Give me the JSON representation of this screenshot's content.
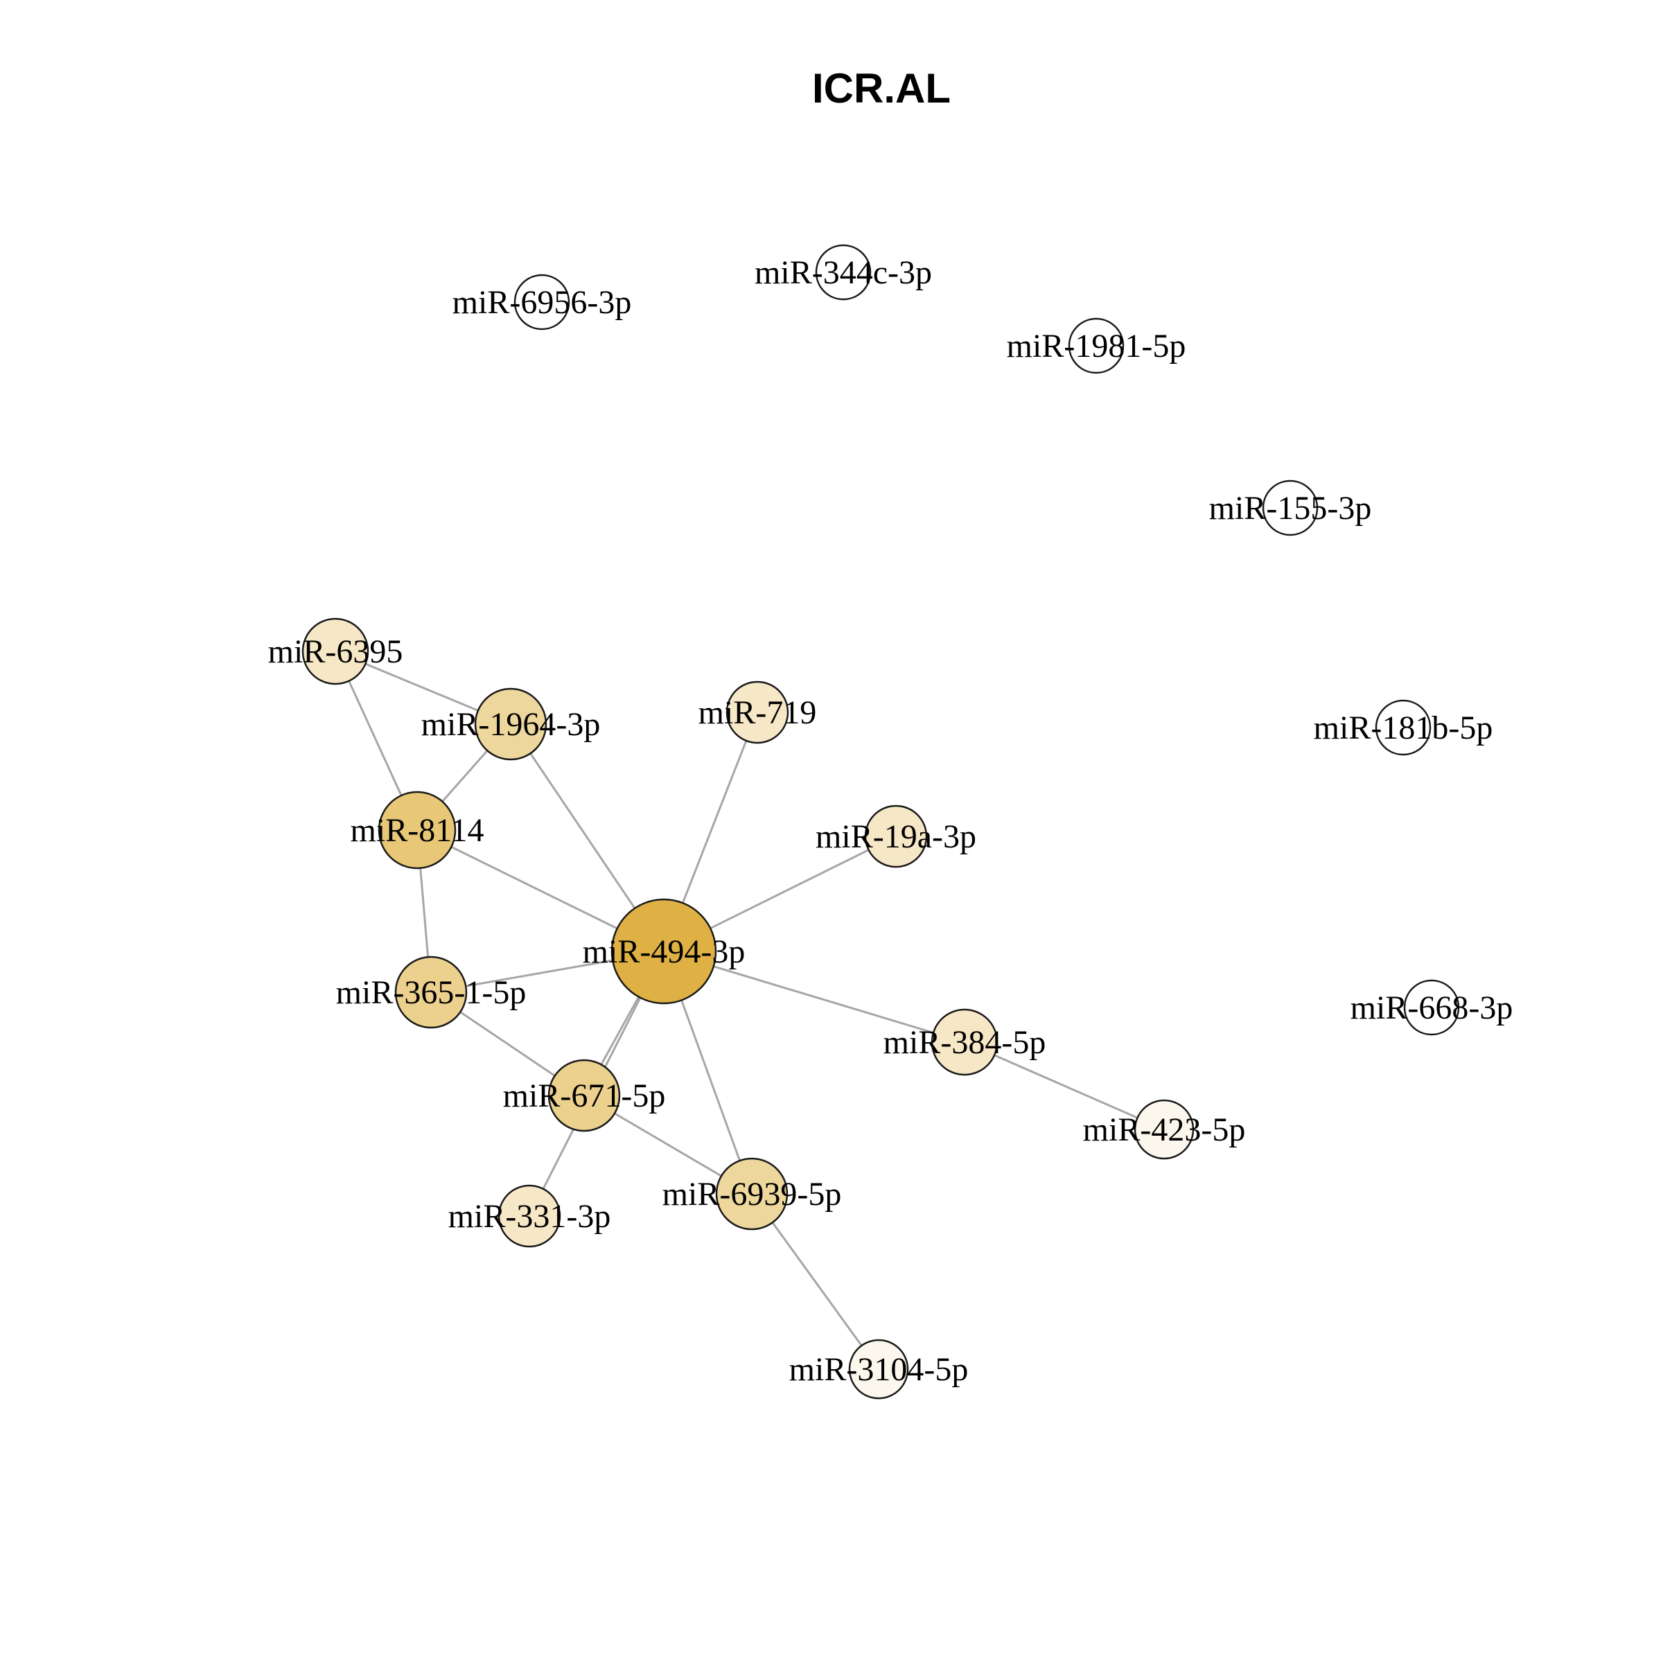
{
  "title": "ICR.AL",
  "network": {
    "nodes": [
      {
        "id": "miR-6956-3p",
        "label": "miR-6956-3p",
        "fill": "#ffffff"
      },
      {
        "id": "miR-344c-3p",
        "label": "miR-344c-3p",
        "fill": "#ffffff"
      },
      {
        "id": "miR-1981-5p",
        "label": "miR-1981-5p",
        "fill": "#ffffff"
      },
      {
        "id": "miR-155-3p",
        "label": "miR-155-3p",
        "fill": "#ffffff"
      },
      {
        "id": "miR-181b-5p",
        "label": "miR-181b-5p",
        "fill": "#ffffff"
      },
      {
        "id": "miR-668-3p",
        "label": "miR-668-3p",
        "fill": "#ffffff"
      },
      {
        "id": "miR-6395",
        "label": "miR-6395",
        "fill": "#f6e7c6"
      },
      {
        "id": "miR-1964-3p",
        "label": "miR-1964-3p",
        "fill": "#eed79d"
      },
      {
        "id": "miR-719",
        "label": "miR-719",
        "fill": "#f6e7c6"
      },
      {
        "id": "miR-8114",
        "label": "miR-8114",
        "fill": "#e8c777"
      },
      {
        "id": "miR-19a-3p",
        "label": "miR-19a-3p",
        "fill": "#f6e7c6"
      },
      {
        "id": "miR-494-3p",
        "label": "miR-494-3p",
        "fill": "#dfb144"
      },
      {
        "id": "miR-365-1-5p",
        "label": "miR-365-1-5p",
        "fill": "#ecd08e"
      },
      {
        "id": "miR-671-5p",
        "label": "miR-671-5p",
        "fill": "#ecd08e"
      },
      {
        "id": "miR-384-5p",
        "label": "miR-384-5p",
        "fill": "#f6e7c6"
      },
      {
        "id": "miR-423-5p",
        "label": "miR-423-5p",
        "fill": "#fbf7ec"
      },
      {
        "id": "miR-6939-5p",
        "label": "miR-6939-5p",
        "fill": "#eed79d"
      },
      {
        "id": "miR-331-3p",
        "label": "miR-331-3p",
        "fill": "#f6e7c6"
      },
      {
        "id": "miR-3104-5p",
        "label": "miR-3104-5p",
        "fill": "#fbf7ec"
      }
    ],
    "edges": [
      [
        "miR-6395",
        "miR-1964-3p"
      ],
      [
        "miR-6395",
        "miR-8114"
      ],
      [
        "miR-1964-3p",
        "miR-8114"
      ],
      [
        "miR-1964-3p",
        "miR-494-3p"
      ],
      [
        "miR-719",
        "miR-494-3p"
      ],
      [
        "miR-8114",
        "miR-494-3p"
      ],
      [
        "miR-8114",
        "miR-365-1-5p"
      ],
      [
        "miR-19a-3p",
        "miR-494-3p"
      ],
      [
        "miR-494-3p",
        "miR-365-1-5p"
      ],
      [
        "miR-494-3p",
        "miR-671-5p"
      ],
      [
        "miR-494-3p",
        "miR-331-3p"
      ],
      [
        "miR-494-3p",
        "miR-384-5p"
      ],
      [
        "miR-494-3p",
        "miR-6939-5p"
      ],
      [
        "miR-365-1-5p",
        "miR-671-5p"
      ],
      [
        "miR-671-5p",
        "miR-6939-5p"
      ],
      [
        "miR-384-5p",
        "miR-423-5p"
      ],
      [
        "miR-6939-5p",
        "miR-3104-5p"
      ]
    ]
  }
}
